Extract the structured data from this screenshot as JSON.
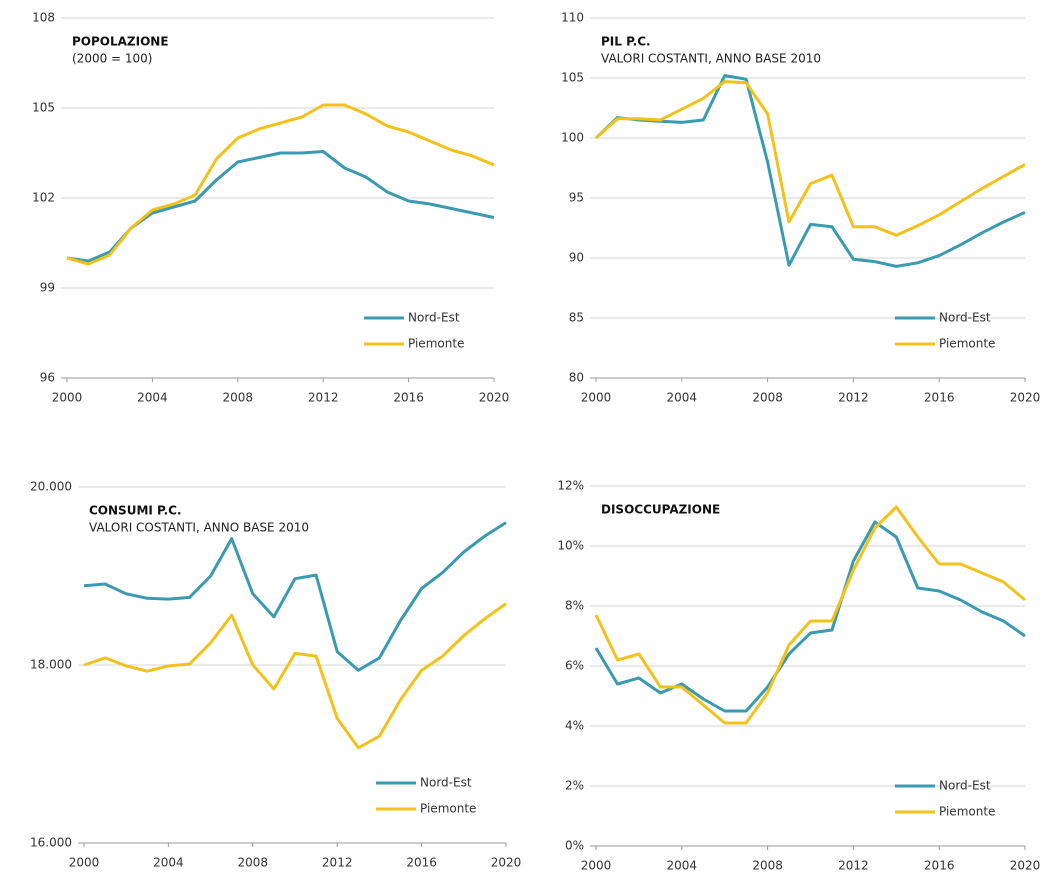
{
  "chart_data": [
    {
      "type": "line",
      "title": "POPOLAZIONE",
      "subtitle": "(2000 = 100)",
      "x": [
        2000,
        2001,
        2002,
        2003,
        2004,
        2005,
        2006,
        2007,
        2008,
        2009,
        2010,
        2011,
        2012,
        2013,
        2014,
        2015,
        2016,
        2017,
        2018,
        2019,
        2020
      ],
      "xlim": [
        2000,
        2020
      ],
      "xticks": [
        2000,
        2004,
        2008,
        2012,
        2016,
        2020
      ],
      "ylim": [
        96,
        108
      ],
      "yticks": [
        96,
        99,
        102,
        105,
        108
      ],
      "grid": true,
      "legend": "bottom-right",
      "series": [
        {
          "name": "Nord-Est",
          "color": "#3a9ab0",
          "values": [
            100.0,
            99.9,
            100.2,
            101.0,
            101.5,
            101.7,
            101.9,
            102.6,
            103.2,
            103.35,
            103.5,
            103.5,
            103.55,
            103.0,
            102.7,
            102.2,
            101.9,
            101.8,
            101.65,
            101.5,
            101.35
          ]
        },
        {
          "name": "Piemonte",
          "color": "#f2c21b",
          "values": [
            100.0,
            99.8,
            100.1,
            101.0,
            101.6,
            101.8,
            102.1,
            103.3,
            104.0,
            104.3,
            104.5,
            104.7,
            105.1,
            105.1,
            104.8,
            104.4,
            104.2,
            103.9,
            103.6,
            103.4,
            103.1
          ]
        }
      ]
    },
    {
      "type": "line",
      "title": "PIL P.C.",
      "subtitle": "VALORI COSTANTI, ANNO BASE 2010",
      "x": [
        2000,
        2001,
        2002,
        2003,
        2004,
        2005,
        2006,
        2007,
        2008,
        2009,
        2010,
        2011,
        2012,
        2013,
        2014,
        2015,
        2016,
        2017,
        2018,
        2019,
        2020
      ],
      "xlim": [
        2000,
        2020
      ],
      "xticks": [
        2000,
        2004,
        2008,
        2012,
        2016,
        2020
      ],
      "ylim": [
        80,
        110
      ],
      "yticks": [
        80,
        85,
        90,
        95,
        100,
        105,
        110
      ],
      "grid": true,
      "legend": "bottom-right",
      "series": [
        {
          "name": "Nord-Est",
          "color": "#3a9ab0",
          "values": [
            100,
            101.7,
            101.5,
            101.4,
            101.3,
            101.5,
            105.2,
            104.9,
            98,
            89.4,
            92.8,
            92.6,
            89.9,
            89.7,
            89.3,
            89.6,
            90.2,
            91.1,
            92.1,
            93.0,
            93.8
          ]
        },
        {
          "name": "Piemonte",
          "color": "#f2c21b",
          "values": [
            100,
            101.6,
            101.6,
            101.5,
            102.4,
            103.3,
            104.7,
            104.6,
            102,
            93,
            96.2,
            96.9,
            92.6,
            92.6,
            91.9,
            92.7,
            93.6,
            94.7,
            95.8,
            96.8,
            97.8
          ]
        }
      ]
    },
    {
      "type": "line",
      "title": "CONSUMI P.C.",
      "subtitle": "VALORI COSTANTI, ANNO BASE 2010",
      "x": [
        2000,
        2001,
        2002,
        2003,
        2004,
        2005,
        2006,
        2007,
        2008,
        2009,
        2010,
        2011,
        2012,
        2013,
        2014,
        2015,
        2016,
        2017,
        2018,
        2019,
        2020
      ],
      "xlim": [
        2000,
        2020
      ],
      "xticks": [
        2000,
        2004,
        2008,
        2012,
        2016,
        2020
      ],
      "ylim": [
        16000,
        20000
      ],
      "yticks": [
        {
          "value": 16000,
          "label": "16.000"
        },
        {
          "value": 18000,
          "label": "18.000"
        },
        {
          "value": 20000,
          "label": "20.000"
        }
      ],
      "grid": true,
      "legend": "bottom-right",
      "series": [
        {
          "name": "Nord-Est",
          "color": "#3a9ab0",
          "values": [
            18890,
            18910,
            18800,
            18750,
            18740,
            18760,
            19000,
            19420,
            18800,
            18540,
            18970,
            19010,
            18150,
            17940,
            18080,
            18500,
            18860,
            19040,
            19270,
            19450,
            19600
          ]
        },
        {
          "name": "Piemonte",
          "color": "#f2c21b",
          "values": [
            18000,
            18080,
            17990,
            17930,
            17990,
            18010,
            18250,
            18560,
            18000,
            17730,
            18130,
            18100,
            17400,
            17070,
            17200,
            17610,
            17940,
            18100,
            18330,
            18520,
            18690
          ]
        }
      ]
    },
    {
      "type": "line",
      "title": "DISOCCUPAZIONE",
      "x": [
        2000,
        2001,
        2002,
        2003,
        2004,
        2005,
        2006,
        2007,
        2008,
        2009,
        2010,
        2011,
        2012,
        2013,
        2014,
        2015,
        2016,
        2017,
        2018,
        2019,
        2020
      ],
      "xlim": [
        2000,
        2020
      ],
      "xticks": [
        2000,
        2004,
        2008,
        2012,
        2016,
        2020
      ],
      "ylim": [
        0,
        12
      ],
      "yticks": [
        {
          "value": 0,
          "label": "0%"
        },
        {
          "value": 2,
          "label": "2%"
        },
        {
          "value": 4,
          "label": "4%"
        },
        {
          "value": 6,
          "label": "6%"
        },
        {
          "value": 8,
          "label": "8%"
        },
        {
          "value": 10,
          "label": "10%"
        },
        {
          "value": 12,
          "label": "12%"
        }
      ],
      "grid": true,
      "legend": "bottom-right",
      "series": [
        {
          "name": "Nord-Est",
          "color": "#3a9ab0",
          "values": [
            6.6,
            5.4,
            5.6,
            5.1,
            5.4,
            4.9,
            4.5,
            4.5,
            5.3,
            6.4,
            7.1,
            7.2,
            9.5,
            10.8,
            10.3,
            8.6,
            8.5,
            8.2,
            7.8,
            7.5,
            7.0
          ]
        },
        {
          "name": "Piemonte",
          "color": "#f2c21b",
          "values": [
            7.7,
            6.2,
            6.4,
            5.3,
            5.3,
            4.7,
            4.1,
            4.1,
            5.1,
            6.7,
            7.5,
            7.5,
            9.2,
            10.6,
            11.3,
            10.3,
            9.4,
            9.4,
            9.1,
            8.8,
            8.2
          ]
        }
      ]
    }
  ]
}
